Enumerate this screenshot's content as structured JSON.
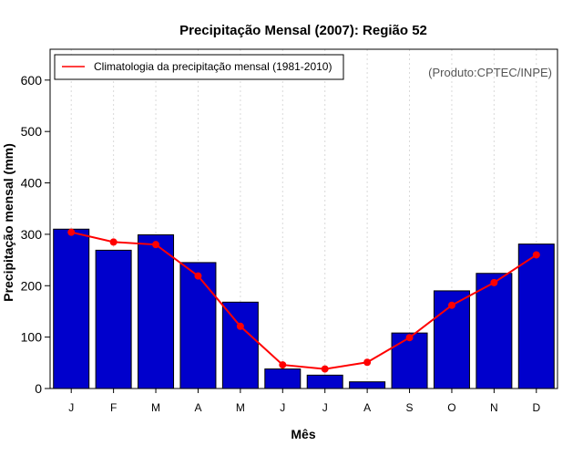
{
  "chart_data": {
    "type": "bar",
    "title": "Precipitação Mensal (2007): Região 52",
    "xlabel": "Mês",
    "ylabel": "Precipitação mensal (mm)",
    "ylim": [
      0,
      660
    ],
    "yticks": [
      0,
      100,
      200,
      300,
      400,
      500,
      600
    ],
    "categories": [
      "J",
      "F",
      "M",
      "A",
      "M",
      "J",
      "J",
      "A",
      "S",
      "O",
      "N",
      "D"
    ],
    "series": [
      {
        "name": "Precipitação mensal (2007)",
        "kind": "bar",
        "color": "#0000CC",
        "values": [
          310,
          269,
          299,
          245,
          168,
          38,
          26,
          13,
          108,
          190,
          224,
          281
        ]
      },
      {
        "name": "Climatologia da precipitação mensal (1981-2010)",
        "kind": "line",
        "color": "#FF0000",
        "values": [
          304,
          285,
          280,
          219,
          121,
          46,
          38,
          51,
          99,
          162,
          206,
          260
        ]
      }
    ],
    "legend": "top-left",
    "vertical_gridlines": true,
    "credit": "(Produto:CPTEC/INPE)"
  }
}
